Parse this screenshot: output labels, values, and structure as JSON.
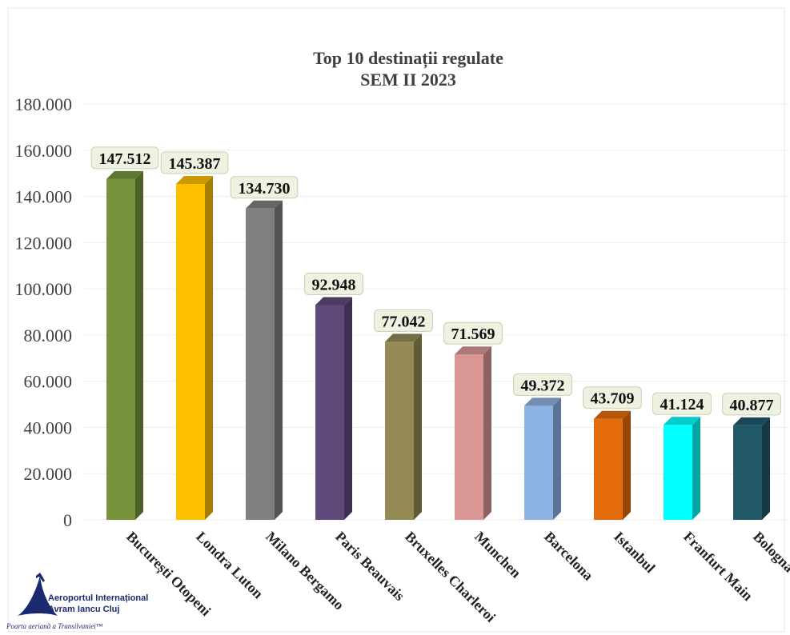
{
  "chart_data": {
    "type": "bar",
    "title": [
      "Top 10 destinații regulate",
      "SEM II 2023"
    ],
    "categories": [
      "București Otopeni",
      "Londra Luton",
      "Milano Bergamo",
      "Paris Beauvais",
      "Bruxelles Charleroi",
      "Munchen",
      "Barcelona",
      "Istanbul",
      "Franfurt Main",
      "Bologna"
    ],
    "values": [
      147512,
      145387,
      134730,
      92948,
      77042,
      71569,
      49372,
      43709,
      41124,
      40877
    ],
    "value_labels": [
      "147.512",
      "145.387",
      "134.730",
      "92.948",
      "77.042",
      "71.569",
      "49.372",
      "43.709",
      "41.124",
      "40.877"
    ],
    "colors": [
      "#77933c",
      "#ffc000",
      "#808080",
      "#604a7b",
      "#948a54",
      "#d99694",
      "#8db3e2",
      "#e46c0a",
      "#00ffff",
      "#215968"
    ],
    "yticks": [
      "0",
      "20.000",
      "40.000",
      "60.000",
      "80.000",
      "100.000",
      "120.000",
      "140.000",
      "160.000",
      "180.000"
    ],
    "ylim": [
      0,
      180000
    ],
    "xlabel": "",
    "ylabel": "",
    "grid": true,
    "legend": "none",
    "style": "3d-columns"
  },
  "logo": {
    "line1": "Aeroportul Internațional",
    "line2": "Avram Iancu Cluj",
    "line3": "Poarta aeriană a Transilvaniei™",
    "color": "#1b2a6e"
  }
}
